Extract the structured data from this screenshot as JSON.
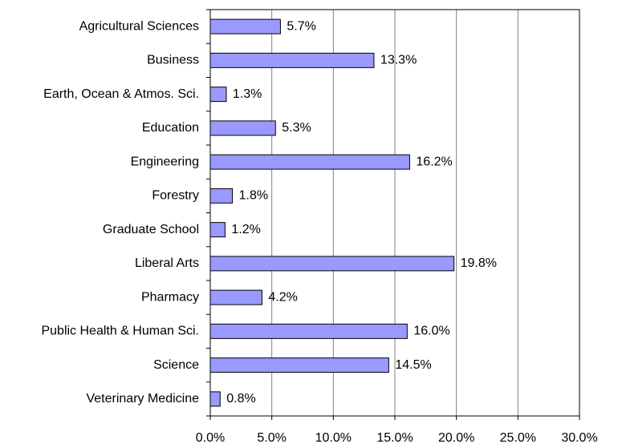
{
  "chart_data": {
    "type": "hbar",
    "categories": [
      "Agricultural Sciences",
      "Business",
      "Earth, Ocean & Atmos. Sci.",
      "Education",
      "Engineering",
      "Forestry",
      "Graduate School",
      "Liberal Arts",
      "Pharmacy",
      "Public Health & Human Sci.",
      "Science",
      "Veterinary Medicine"
    ],
    "values": [
      5.7,
      13.3,
      1.3,
      5.3,
      16.2,
      1.8,
      1.2,
      19.8,
      4.2,
      16.0,
      14.5,
      0.8
    ],
    "value_labels": [
      "5.7%",
      "13.3%",
      "1.3%",
      "5.3%",
      "16.2%",
      "1.8%",
      "1.2%",
      "19.8%",
      "4.2%",
      "16.0%",
      "14.5%",
      "0.8%"
    ],
    "color": "#9999ff",
    "xlim": [
      0,
      30
    ],
    "xticks": [
      {
        "value": 0,
        "label": "0.0%"
      },
      {
        "value": 5,
        "label": "5.0%"
      },
      {
        "value": 10,
        "label": "10.0%"
      },
      {
        "value": 15,
        "label": "15.0%"
      },
      {
        "value": 20,
        "label": "20.0%"
      },
      {
        "value": 25,
        "label": "25.0%"
      },
      {
        "value": 30,
        "label": "30.0%"
      }
    ],
    "grid": true
  }
}
